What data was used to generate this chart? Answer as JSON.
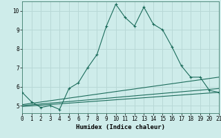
{
  "main_x": [
    0,
    1,
    2,
    3,
    4,
    5,
    6,
    7,
    8,
    9,
    10,
    11,
    12,
    13,
    14,
    15,
    16,
    17,
    18,
    19,
    20,
    21
  ],
  "main_y": [
    5.7,
    5.2,
    4.9,
    5.0,
    4.8,
    5.9,
    6.2,
    7.0,
    7.7,
    9.2,
    10.35,
    9.65,
    9.2,
    10.2,
    9.3,
    9.0,
    8.1,
    7.1,
    6.5,
    6.5,
    5.8,
    5.7
  ],
  "flat_lines": [
    {
      "x": [
        0,
        21
      ],
      "y": [
        5.05,
        6.5
      ]
    },
    {
      "x": [
        0,
        21
      ],
      "y": [
        5.0,
        5.9
      ]
    },
    {
      "x": [
        0,
        21
      ],
      "y": [
        4.95,
        5.7
      ]
    }
  ],
  "line_color": "#1a6b5a",
  "bg_color": "#ceecea",
  "grid_color": "#b8d8d6",
  "xlabel": "Humidex (Indice chaleur)",
  "xlim": [
    0,
    21
  ],
  "ylim": [
    4.6,
    10.5
  ],
  "yticks": [
    5,
    6,
    7,
    8,
    9,
    10
  ],
  "xticks": [
    0,
    1,
    2,
    3,
    4,
    5,
    6,
    7,
    8,
    9,
    10,
    11,
    12,
    13,
    14,
    15,
    16,
    17,
    18,
    19,
    20,
    21
  ]
}
